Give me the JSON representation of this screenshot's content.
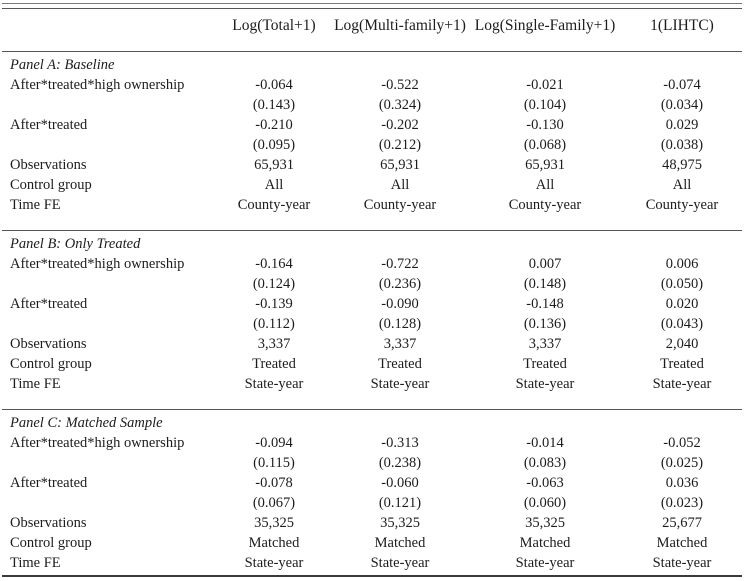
{
  "header": {
    "columns": [
      "Log(Total+1)",
      "Log(Multi-family+1)",
      "Log(Single-Family+1)",
      "1(LIHTC)"
    ]
  },
  "panels": [
    {
      "title": "Panel A: Baseline",
      "rows": [
        {
          "label": "After*treated*high ownership",
          "values": [
            "-0.064",
            "-0.522",
            "-0.021",
            "-0.074"
          ]
        },
        {
          "label": "",
          "values": [
            "(0.143)",
            "(0.324)",
            "(0.104)",
            "(0.034)"
          ]
        },
        {
          "label": "After*treated",
          "values": [
            "-0.210",
            "-0.202",
            "-0.130",
            "0.029"
          ]
        },
        {
          "label": "",
          "values": [
            "(0.095)",
            "(0.212)",
            "(0.068)",
            "(0.038)"
          ]
        },
        {
          "label": "Observations",
          "values": [
            "65,931",
            "65,931",
            "65,931",
            "48,975"
          ]
        },
        {
          "label": "Control group",
          "values": [
            "All",
            "All",
            "All",
            "All"
          ]
        },
        {
          "label": "Time FE",
          "values": [
            "County-year",
            "County-year",
            "County-year",
            "County-year"
          ]
        }
      ]
    },
    {
      "title": "Panel B: Only Treated",
      "rows": [
        {
          "label": "After*treated*high ownership",
          "values": [
            "-0.164",
            "-0.722",
            "0.007",
            "0.006"
          ]
        },
        {
          "label": "",
          "values": [
            "(0.124)",
            "(0.236)",
            "(0.148)",
            "(0.050)"
          ]
        },
        {
          "label": "After*treated",
          "values": [
            "-0.139",
            "-0.090",
            "-0.148",
            "0.020"
          ]
        },
        {
          "label": "",
          "values": [
            "(0.112)",
            "(0.128)",
            "(0.136)",
            "(0.043)"
          ]
        },
        {
          "label": "Observations",
          "values": [
            "3,337",
            "3,337",
            "3,337",
            "2,040"
          ]
        },
        {
          "label": "Control group",
          "values": [
            "Treated",
            "Treated",
            "Treated",
            "Treated"
          ]
        },
        {
          "label": "Time FE",
          "values": [
            "State-year",
            "State-year",
            "State-year",
            "State-year"
          ]
        }
      ]
    },
    {
      "title": "Panel C: Matched Sample",
      "rows": [
        {
          "label": "After*treated*high ownership",
          "values": [
            "-0.094",
            "-0.313",
            "-0.014",
            "-0.052"
          ]
        },
        {
          "label": "",
          "values": [
            "(0.115)",
            "(0.238)",
            "(0.083)",
            "(0.025)"
          ]
        },
        {
          "label": "After*treated",
          "values": [
            "-0.078",
            "-0.060",
            "-0.063",
            "0.036"
          ]
        },
        {
          "label": "",
          "values": [
            "(0.067)",
            "(0.121)",
            "(0.060)",
            "(0.023)"
          ]
        },
        {
          "label": "Observations",
          "values": [
            "35,325",
            "35,325",
            "35,325",
            "25,677"
          ]
        },
        {
          "label": "Control group",
          "values": [
            "Matched",
            "Matched",
            "Matched",
            "Matched"
          ]
        },
        {
          "label": "Time FE",
          "values": [
            "State-year",
            "State-year",
            "State-year",
            "State-year"
          ]
        }
      ]
    }
  ],
  "colors": {
    "text": "#1c1c1c",
    "rule": "#555555",
    "rule_light": "#7a7a7a",
    "rule_bottom_thick": "#3a3a3a"
  }
}
